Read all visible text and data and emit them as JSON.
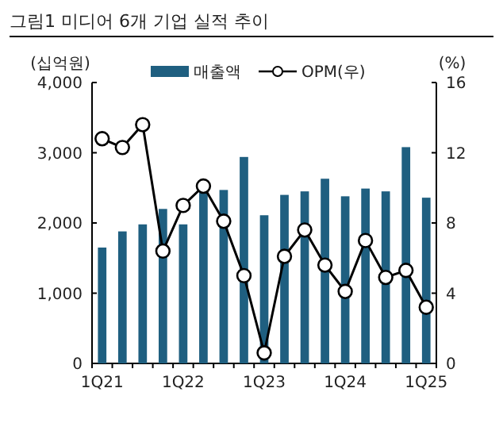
{
  "chart_data": {
    "type": "bar",
    "title": "그림1  미디어 6개 기업 실적 추이",
    "ylabel": "(십억원)",
    "y2label": "(%)",
    "categories": [
      "1Q21",
      null,
      null,
      null,
      "1Q22",
      null,
      null,
      null,
      "1Q23",
      null,
      null,
      null,
      "1Q24",
      null,
      null,
      null,
      "1Q25"
    ],
    "series": [
      {
        "name": "매출액",
        "color": "#1f5f80",
        "values": [
          1650,
          1880,
          1980,
          2200,
          1980,
          2450,
          2470,
          2940,
          2110,
          2400,
          2450,
          2630,
          2380,
          2490,
          2450,
          3080,
          2360
        ]
      },
      {
        "name": "OPM(우)",
        "type": "line",
        "axis": "y2",
        "color": "#000000",
        "marker": "circle",
        "values": [
          12.8,
          12.3,
          13.6,
          6.4,
          9.0,
          10.1,
          8.1,
          5.0,
          0.6,
          6.1,
          7.6,
          5.6,
          4.1,
          7.0,
          4.9,
          5.3,
          3.2
        ]
      }
    ],
    "ylim": [
      0,
      4000
    ],
    "yticks": [
      0,
      {
        "value": 1000,
        "label": "1,000"
      },
      {
        "value": 2000,
        "label": "2,000"
      },
      {
        "value": 3000,
        "label": "3,000"
      },
      {
        "value": 4000,
        "label": "4,000"
      }
    ],
    "y2lim": [
      0,
      16
    ],
    "y2ticks": [
      0,
      4,
      8,
      12,
      16
    ],
    "legend": "top",
    "grid": false
  }
}
